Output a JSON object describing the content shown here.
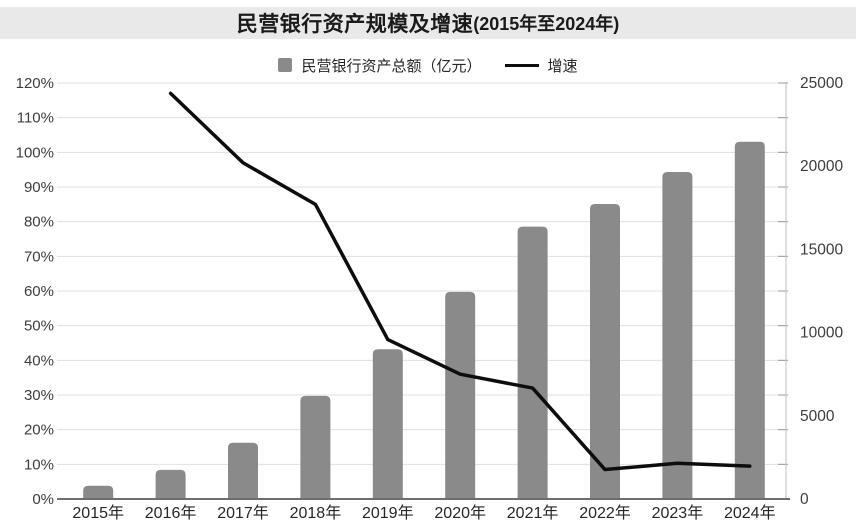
{
  "title": {
    "main": "民营银行资产规模及增速",
    "range": "(2015年至2024年)"
  },
  "legend": {
    "bar_label": "民营银行资产总额（亿元）",
    "line_label": "增速"
  },
  "colors": {
    "bar": "#8a8a8a",
    "line": "#0d0d0d",
    "grid": "#e0e0e0",
    "axis_text": "#3d3d3d",
    "x_label_text": "#262626",
    "x_axis_line": "#6e6e6e",
    "right_axis_line": "#bfbfbf",
    "tick": "#9a9a9a",
    "title_band_bg": "#e9e9e9",
    "title_text": "#1a1a1a"
  },
  "chart_data": {
    "type": "bar",
    "subtype": "bar+line combo, dual axis",
    "title": "民营银行资产规模及增速(2015年至2024年)",
    "categories": [
      "2015年",
      "2016年",
      "2017年",
      "2018年",
      "2019年",
      "2020年",
      "2021年",
      "2022年",
      "2023年",
      "2024年"
    ],
    "series": [
      {
        "name": "民营银行资产总额（亿元）",
        "type": "bar",
        "axis": "right",
        "values": [
          800,
          1750,
          3380,
          6200,
          9000,
          12450,
          16370,
          17730,
          19650,
          21470
        ]
      },
      {
        "name": "增速",
        "type": "line",
        "axis": "left",
        "unit": "%",
        "values": [
          null,
          117,
          97,
          85,
          46,
          36,
          32,
          8.5,
          10.3,
          9.5
        ]
      }
    ],
    "left_axis": {
      "ticks": [
        "0%",
        "10%",
        "20%",
        "30%",
        "40%",
        "50%",
        "60%",
        "70%",
        "80%",
        "90%",
        "100%",
        "110%",
        "120%"
      ],
      "min": 0,
      "max": 120,
      "step": 10
    },
    "right_axis": {
      "ticks": [
        "0",
        "5000",
        "10000",
        "15000",
        "20000",
        "25000"
      ],
      "min": 0,
      "max": 25000,
      "step": 5000
    },
    "grid": true,
    "legend_position": "top-center"
  }
}
